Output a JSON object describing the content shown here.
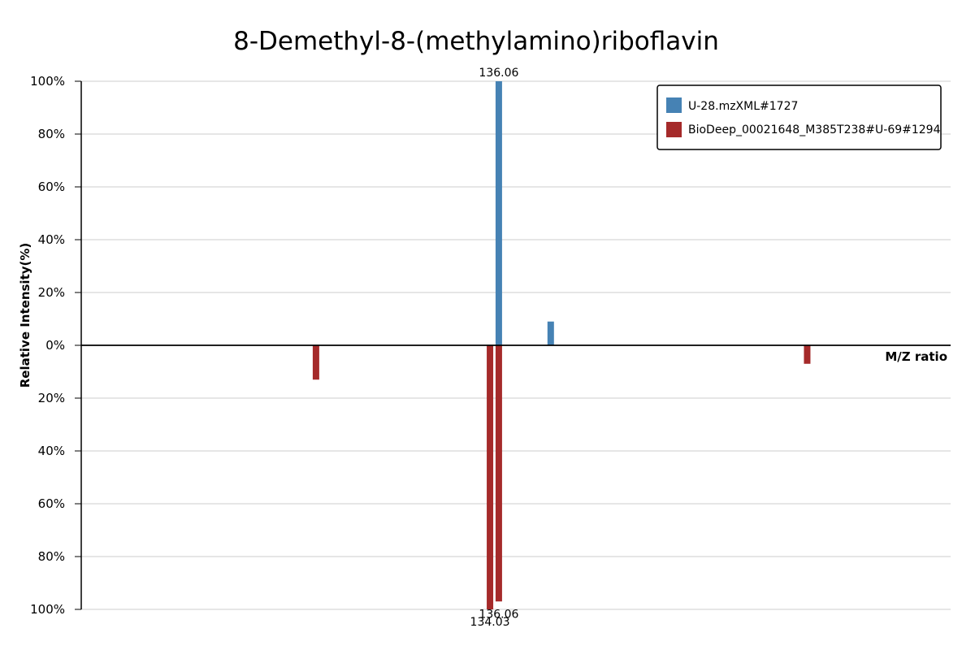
{
  "chart_data": {
    "type": "bar",
    "title": "8-Demethyl-8-(methylamino)riboflavin",
    "xlabel": "M/Z ratio",
    "ylabel": "Relative Intensity(%)",
    "xlim": [
      40,
      240
    ],
    "ylim": [
      -100,
      100
    ],
    "y_ticks": [
      "100%",
      "80%",
      "60%",
      "40%",
      "20%",
      "0%",
      "20%",
      "40%",
      "60%",
      "80%",
      "100%"
    ],
    "grid": true,
    "legend_position": "top-right",
    "series": [
      {
        "name": "U-28.mzXML#1727",
        "color": "#4682B4",
        "direction": "up",
        "peaks": [
          {
            "mz": 136.06,
            "intensity": 100,
            "label": "136.06"
          },
          {
            "mz": 148.0,
            "intensity": 9
          }
        ]
      },
      {
        "name": "BioDeep_00021648_M385T238#U-69#1294",
        "color": "#A52A2A",
        "direction": "down",
        "peaks": [
          {
            "mz": 94.0,
            "intensity": 13
          },
          {
            "mz": 134.03,
            "intensity": 100,
            "label": "134.03"
          },
          {
            "mz": 136.06,
            "intensity": 97,
            "label": "136.06"
          },
          {
            "mz": 207.0,
            "intensity": 7
          }
        ]
      }
    ]
  }
}
